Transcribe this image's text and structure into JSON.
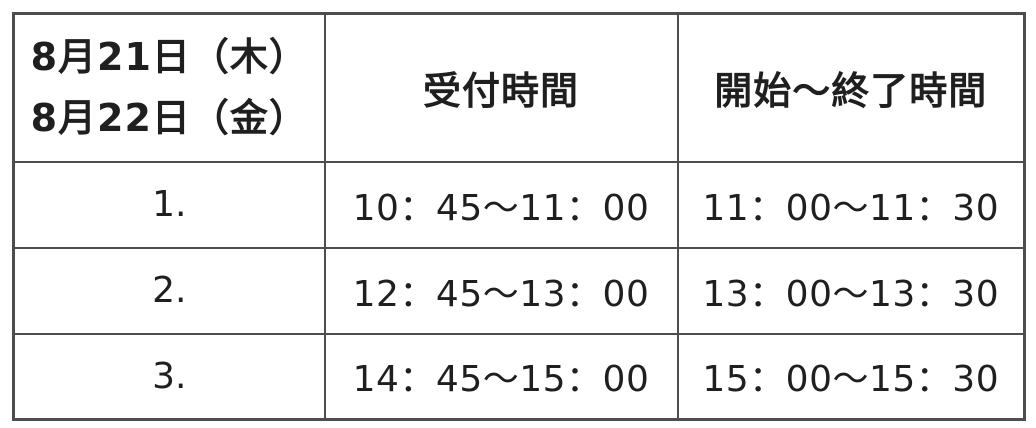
{
  "colors": {
    "background": "#ffffff",
    "border": "#4d4d4d",
    "text": "#1f1f1f"
  },
  "table": {
    "header": {
      "date_line1": "8月21日（木）",
      "date_line2": "8月22日（金）",
      "reception_label": "受付時間",
      "start_end_label": "開始〜終了時間"
    },
    "rows": [
      {
        "no": "1.",
        "reception": "10：45〜11：00",
        "start_end": "11：00〜11：30"
      },
      {
        "no": "2.",
        "reception": "12：45〜13：00",
        "start_end": "13：00〜13：30"
      },
      {
        "no": "3.",
        "reception": "14：45〜15：00",
        "start_end": "15：00〜15：30"
      }
    ]
  }
}
